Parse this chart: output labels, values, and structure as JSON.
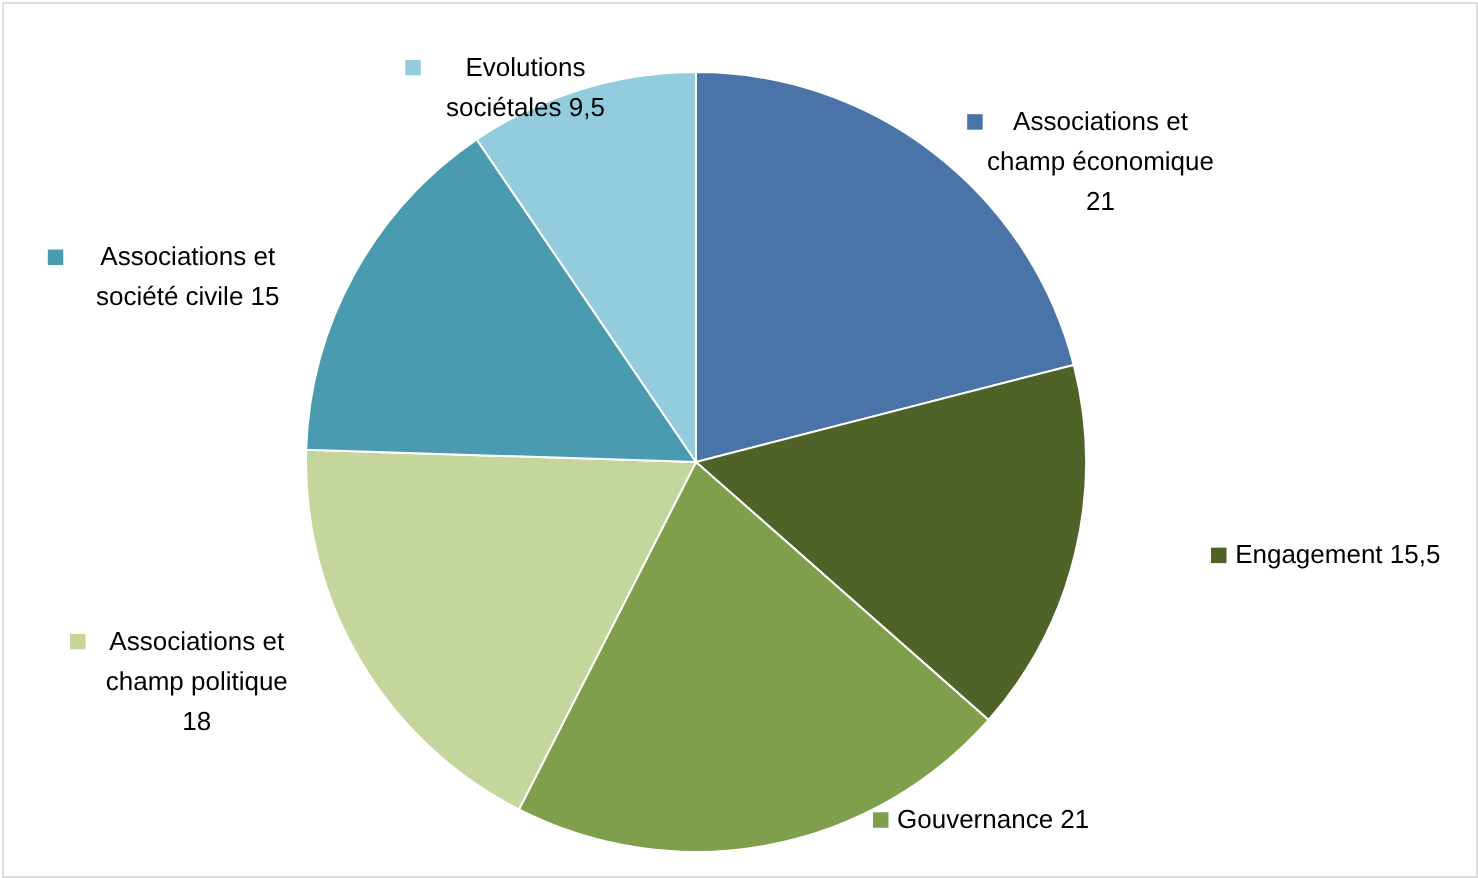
{
  "chart_data": {
    "type": "pie",
    "categories": [
      "Associations et champ économique",
      "Engagement",
      "Gouvernance",
      "Associations et champ politique",
      "Associations et société civile",
      "Evolutions sociétales"
    ],
    "values": [
      21,
      15.5,
      21,
      18,
      15,
      9.5
    ],
    "value_labels": [
      "21",
      "15,5",
      "21",
      "18",
      "15",
      "9,5"
    ],
    "colors": [
      "#4a73a8",
      "#4f6228",
      "#809f4c",
      "#c4d69c",
      "#4a9bb0",
      "#93cddd"
    ],
    "legend": "right"
  }
}
